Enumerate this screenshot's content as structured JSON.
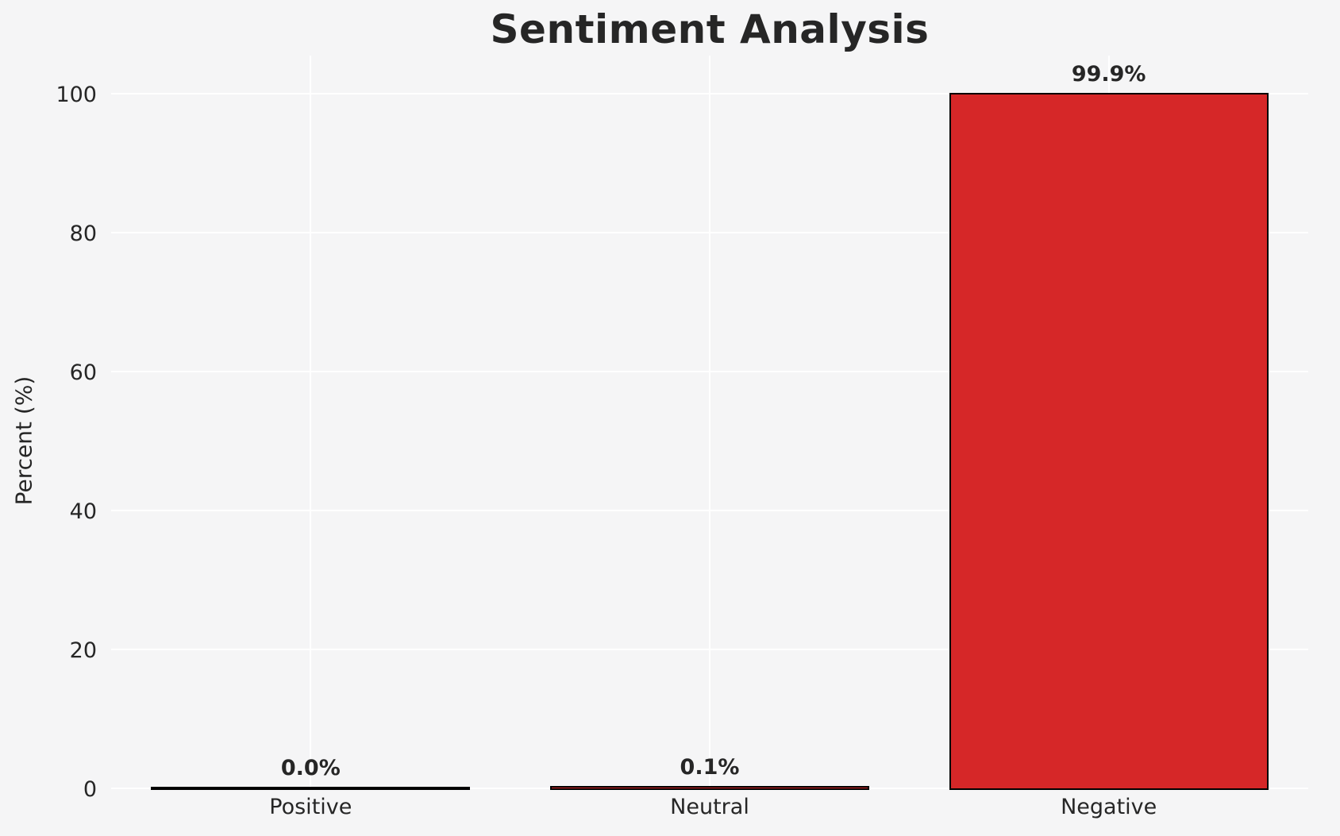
{
  "chart_data": {
    "type": "bar",
    "title": "Sentiment Analysis",
    "ylabel": "Percent (%)",
    "xlabel": "",
    "categories": [
      "Positive",
      "Neutral",
      "Negative"
    ],
    "values": [
      0.0,
      0.1,
      99.9
    ],
    "value_labels": [
      "0.0%",
      "0.1%",
      "99.9%"
    ],
    "yticks": [
      0,
      20,
      40,
      60,
      80,
      100
    ],
    "ylim": [
      0,
      105.5
    ],
    "grid": "on",
    "legend": "none",
    "colors": {
      "bar_fill": "#d62728",
      "bar_edge": "#000000",
      "background": "#f5f5f6",
      "gridline": "#ffffff",
      "text": "#262626"
    }
  }
}
